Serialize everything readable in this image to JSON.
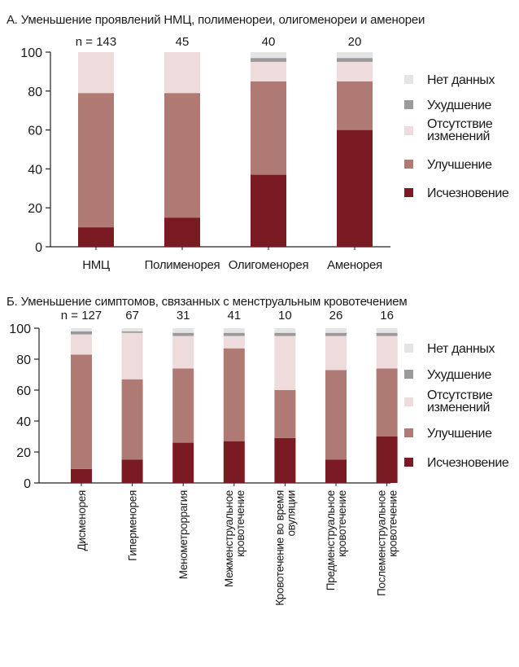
{
  "colors": {
    "no_data": "#e4e4e4",
    "worse": "#9a9a9a",
    "no_change": "#eedcdc",
    "improvement": "#b07a74",
    "disappear": "#7a1a22"
  },
  "legend": [
    {
      "key": "no_data",
      "label": "Нет данных"
    },
    {
      "key": "worse",
      "label": "Ухудшение"
    },
    {
      "key": "no_change",
      "label": "Отсутствие изменений"
    },
    {
      "key": "improvement",
      "label": "Улучшение"
    },
    {
      "key": "disappear",
      "label": "Исчезновение"
    }
  ],
  "chart_data": [
    {
      "type": "bar",
      "stacked": true,
      "title": "А. Уменьшение проявлений НМЦ, полименореи, олигоменореи и аменореи",
      "categories": [
        "НМЦ",
        "Полименорея",
        "Олигоменорея",
        "Аменорея"
      ],
      "n_labels": [
        "n = 143",
        "45",
        "40",
        "20"
      ],
      "ylim": [
        0,
        100
      ],
      "yticks": [
        "0",
        "20",
        "40",
        "60",
        "80",
        "100"
      ],
      "series": [
        {
          "name": "Исчезновение",
          "key": "disappear",
          "values": [
            10,
            15,
            37,
            60
          ]
        },
        {
          "name": "Улучшение",
          "key": "improvement",
          "values": [
            69,
            64,
            48,
            25
          ]
        },
        {
          "name": "Отсутствие изменений",
          "key": "no_change",
          "values": [
            21,
            21,
            10,
            10
          ]
        },
        {
          "name": "Ухудшение",
          "key": "worse",
          "values": [
            0,
            0,
            2,
            2
          ]
        },
        {
          "name": "Нет данных",
          "key": "no_data",
          "values": [
            0,
            0,
            3,
            3
          ]
        }
      ]
    },
    {
      "type": "bar",
      "stacked": true,
      "title": "Б. Уменьшение симптомов, связанных с менструальным кровотечением",
      "categories": [
        "Дисменорея",
        "Гиперменорея",
        "Менометроррагия",
        "Межменструальное кровотечение",
        "Кровотечение во время овуляции",
        "Предменструальное кровотечение",
        "Послеменструальное кровотечение"
      ],
      "category_lines": [
        [
          "Дисменорея"
        ],
        [
          "Гиперменорея"
        ],
        [
          "Менометроррагия"
        ],
        [
          "Межменструальное",
          "кровотечение"
        ],
        [
          "Кровотечение во время",
          "овуляции"
        ],
        [
          "Предменструальное",
          "кровотечение"
        ],
        [
          "Послеменструальное",
          "кровотечение"
        ]
      ],
      "n_labels": [
        "n = 127",
        "67",
        "31",
        "41",
        "10",
        "26",
        "16"
      ],
      "ylim": [
        0,
        100
      ],
      "yticks": [
        "0",
        "20",
        "40",
        "60",
        "80",
        "100"
      ],
      "series": [
        {
          "name": "Исчезновение",
          "key": "disappear",
          "values": [
            9,
            15,
            26,
            27,
            29,
            15,
            30
          ]
        },
        {
          "name": "Улучшение",
          "key": "improvement",
          "values": [
            74,
            52,
            48,
            60,
            31,
            58,
            44
          ]
        },
        {
          "name": "Отсутствие изменений",
          "key": "no_change",
          "values": [
            13,
            30,
            21,
            8,
            35,
            22,
            21
          ]
        },
        {
          "name": "Ухудшение",
          "key": "worse",
          "values": [
            2,
            1,
            2,
            2,
            2,
            2,
            2
          ]
        },
        {
          "name": "Нет данных",
          "key": "no_data",
          "values": [
            2,
            2,
            3,
            3,
            3,
            3,
            3
          ]
        }
      ]
    }
  ]
}
